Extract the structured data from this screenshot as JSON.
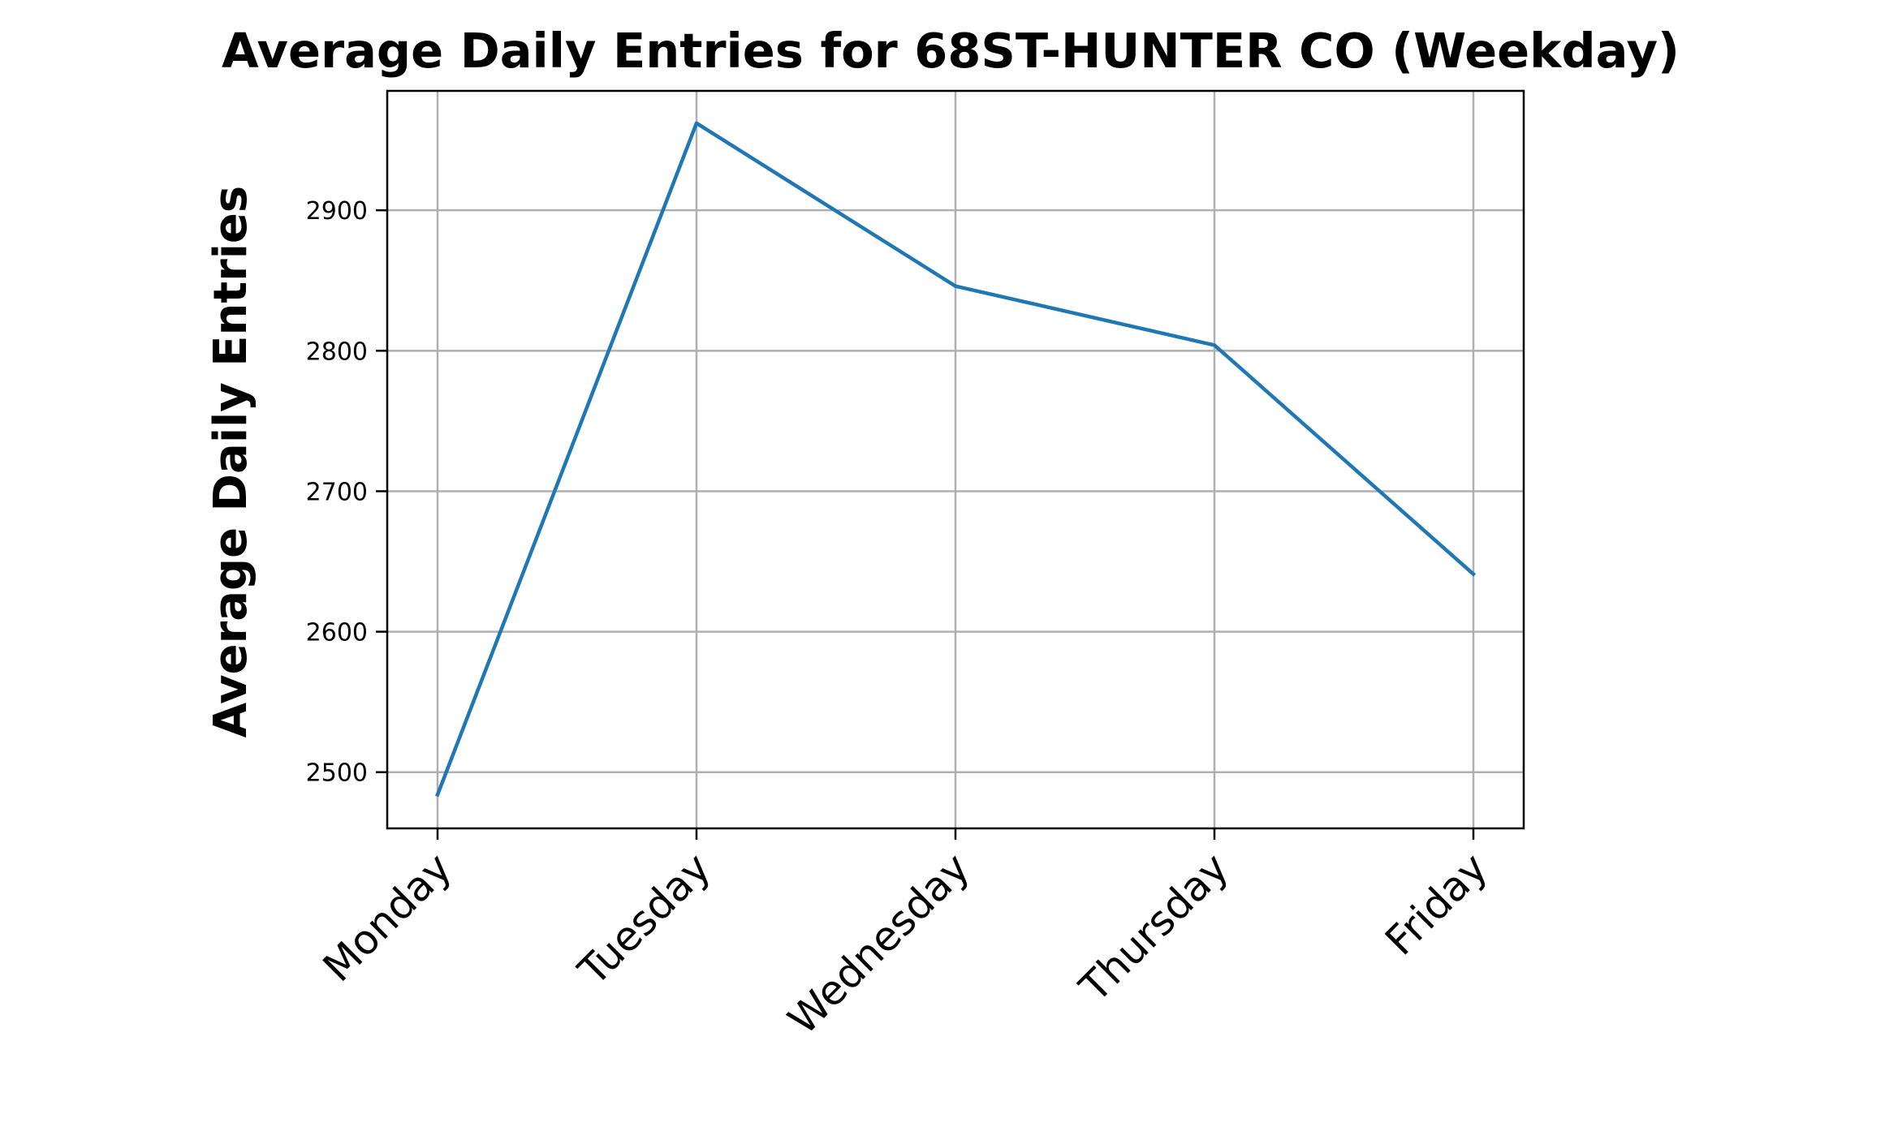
{
  "chart_data": {
    "type": "line",
    "title": "Average Daily Entries for 68ST-HUNTER CO (Weekday)",
    "xlabel": "",
    "ylabel": "Average Daily Entries",
    "categories": [
      "Monday",
      "Tuesday",
      "Wednesday",
      "Thursday",
      "Friday"
    ],
    "series": [
      {
        "values": [
          2484,
          2962,
          2846,
          2804,
          2641
        ],
        "color": "#1f77b4"
      }
    ],
    "ylim": [
      2460,
      2985
    ],
    "yticks": [
      2500,
      2600,
      2700,
      2800,
      2900
    ],
    "ytick_labels": [
      "2500",
      "2600",
      "2700",
      "2800",
      "2900"
    ],
    "grid": true,
    "legend": "none"
  }
}
